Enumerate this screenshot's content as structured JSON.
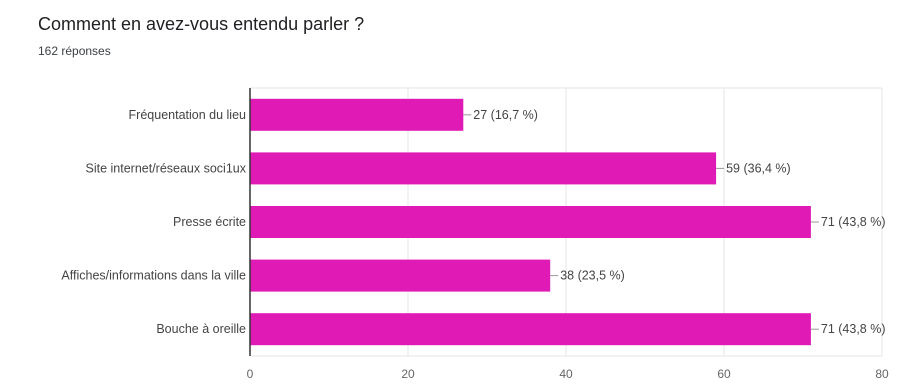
{
  "header": {
    "title": "Comment en avez-vous entendu parler ?",
    "subtitle": "162 réponses"
  },
  "colors": {
    "bar": "#e01ab5",
    "grid": "#e6e6e6",
    "axis": "#333333",
    "label_line": "#999999"
  },
  "chart_data": {
    "type": "bar",
    "orientation": "horizontal",
    "categories": [
      "Fréquentation du lieu",
      "Site internet/réseaux soci1ux",
      "Presse écrite",
      "Affiches/informations dans la ville",
      "Bouche à oreille"
    ],
    "values": [
      27,
      59,
      71,
      38,
      71
    ],
    "data_labels": [
      "27 (16,7 %)",
      "59 (36,4 %)",
      "71 (43,8 %)",
      "38 (23,5 %)",
      "71 (43,8 %)"
    ],
    "xlim": [
      0,
      80
    ],
    "xticks": [
      0,
      20,
      40,
      60,
      80
    ],
    "grid": true,
    "legend": "none"
  }
}
